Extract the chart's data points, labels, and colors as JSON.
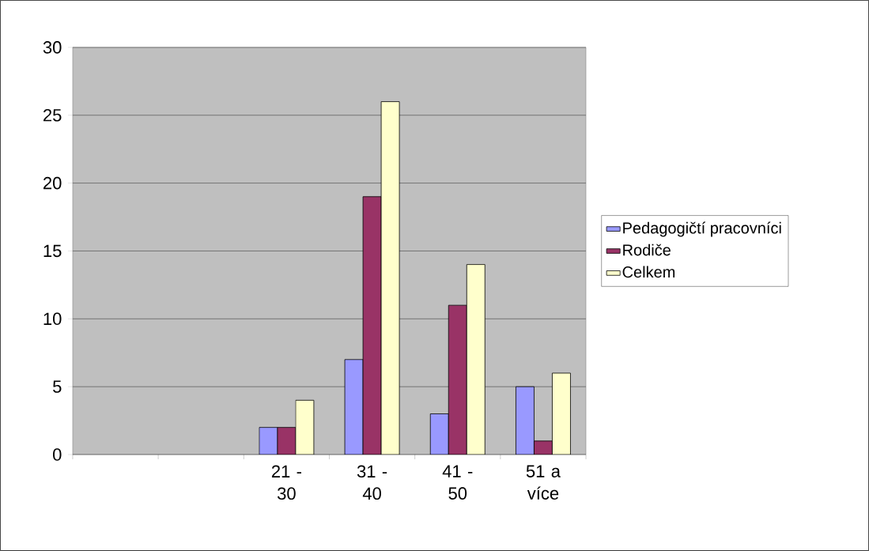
{
  "chart_data": {
    "type": "bar",
    "categories": [
      null,
      null,
      "21 - 30",
      "31 - 40",
      "41 - 50",
      "51 a více"
    ],
    "series": [
      {
        "name": "Pedagogičtí pracovníci",
        "color": "#9999ff",
        "values": [
          null,
          null,
          2,
          7,
          3,
          5
        ]
      },
      {
        "name": "Rodiče",
        "color": "#993366",
        "values": [
          null,
          null,
          2,
          19,
          11,
          1
        ]
      },
      {
        "name": "Celkem",
        "color": "#ffffcc",
        "values": [
          null,
          null,
          4,
          26,
          14,
          6
        ]
      }
    ],
    "ylim": [
      0,
      30
    ],
    "yticks": [
      0,
      5,
      10,
      15,
      20,
      25,
      30
    ],
    "grid": "y",
    "legend": "right"
  }
}
